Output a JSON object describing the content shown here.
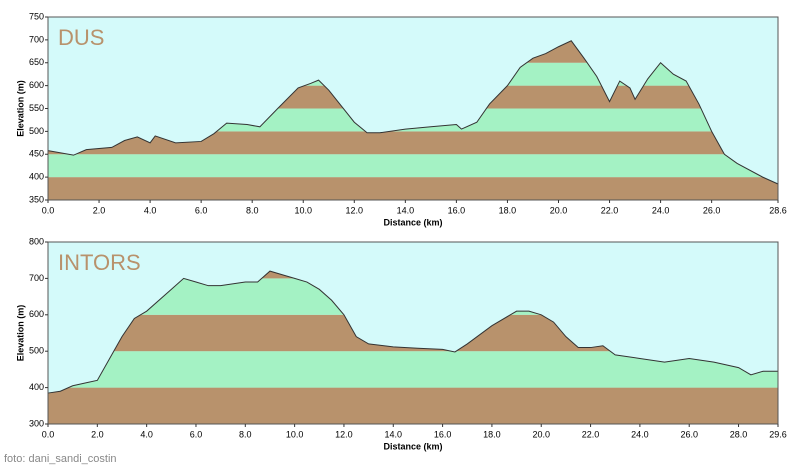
{
  "chart_data": [
    {
      "type": "area",
      "title": "DUS",
      "x_label": "Distance  (km)",
      "y_label": "Elevation (m)",
      "xlim": [
        0,
        28.6
      ],
      "ylim": [
        350,
        750
      ],
      "xticks": [
        {
          "value": 0,
          "label": "0.0"
        },
        {
          "value": 2,
          "label": "2.0"
        },
        {
          "value": 4,
          "label": "4.0"
        },
        {
          "value": 6,
          "label": "6.0"
        },
        {
          "value": 8,
          "label": "8.0"
        },
        {
          "value": 10,
          "label": "10.0"
        },
        {
          "value": 12,
          "label": "12.0"
        },
        {
          "value": 14,
          "label": "14.0"
        },
        {
          "value": 16,
          "label": "16.0"
        },
        {
          "value": 18,
          "label": "18.0"
        },
        {
          "value": 20,
          "label": "20.0"
        },
        {
          "value": 22,
          "label": "22.0"
        },
        {
          "value": 24,
          "label": "24.0"
        },
        {
          "value": 26,
          "label": "26.0"
        },
        28.6
      ],
      "yticks": [
        350,
        400,
        450,
        500,
        550,
        600,
        650,
        700,
        750
      ],
      "band_colors": [
        "#b8926c",
        "#a4f2c4"
      ],
      "line_color": "#333333",
      "x": [
        0,
        1,
        1.5,
        2.5,
        3,
        3.5,
        4,
        4.2,
        5,
        6,
        6.5,
        7,
        7.8,
        8.3,
        9,
        9.8,
        10.3,
        10.6,
        11,
        12,
        12.5,
        13,
        14,
        15,
        16,
        16.2,
        16.8,
        17.3,
        18,
        18.5,
        19,
        19.5,
        20,
        20.5,
        21,
        21.5,
        22,
        22.4,
        22.8,
        23,
        23.5,
        24,
        24.5,
        25,
        25.5,
        26,
        26.5,
        27,
        28,
        28.6
      ],
      "values": [
        458,
        448,
        460,
        465,
        480,
        488,
        475,
        490,
        475,
        478,
        495,
        518,
        515,
        510,
        550,
        595,
        605,
        612,
        590,
        520,
        497,
        497,
        505,
        510,
        515,
        505,
        520,
        560,
        600,
        640,
        660,
        670,
        685,
        698,
        660,
        620,
        565,
        610,
        595,
        570,
        615,
        650,
        625,
        610,
        560,
        500,
        450,
        430,
        400,
        385
      ]
    },
    {
      "type": "area",
      "title": "INTORS",
      "x_label": "Distance  (km)",
      "y_label": "Elevation (m)",
      "xlim": [
        0,
        29.6
      ],
      "ylim": [
        300,
        800
      ],
      "xticks": [
        {
          "value": 0,
          "label": "0.0"
        },
        {
          "value": 2,
          "label": "2.0"
        },
        {
          "value": 4,
          "label": "4.0"
        },
        {
          "value": 6,
          "label": "6.0"
        },
        {
          "value": 8,
          "label": "8.0"
        },
        {
          "value": 10,
          "label": "10.0"
        },
        {
          "value": 12,
          "label": "12.0"
        },
        {
          "value": 14,
          "label": "14.0"
        },
        {
          "value": 16,
          "label": "16.0"
        },
        {
          "value": 18,
          "label": "18.0"
        },
        {
          "value": 20,
          "label": "20.0"
        },
        {
          "value": 22,
          "label": "22.0"
        },
        {
          "value": 24,
          "label": "24.0"
        },
        {
          "value": 26,
          "label": "26.0"
        },
        {
          "value": 28,
          "label": "28.0"
        },
        29.6
      ],
      "yticks": [
        300,
        400,
        500,
        600,
        700,
        800
      ],
      "band_colors": [
        "#b8926c",
        "#a4f2c4"
      ],
      "line_color": "#333333",
      "x": [
        0,
        0.5,
        1,
        2,
        2.5,
        3,
        3.5,
        4,
        5,
        5.5,
        6,
        6.5,
        7,
        8,
        8.5,
        9,
        9.5,
        10,
        10.5,
        11,
        11.5,
        12,
        12.5,
        13,
        14,
        15,
        16,
        16.5,
        17,
        18,
        19,
        19.5,
        20,
        20.5,
        21,
        21.5,
        22,
        22.5,
        23,
        24,
        25,
        26,
        27,
        28,
        28.5,
        29,
        29.6
      ],
      "values": [
        385,
        390,
        405,
        420,
        480,
        540,
        590,
        610,
        670,
        700,
        690,
        680,
        680,
        690,
        690,
        720,
        710,
        700,
        690,
        670,
        640,
        600,
        540,
        520,
        512,
        508,
        505,
        498,
        520,
        570,
        610,
        610,
        600,
        580,
        540,
        510,
        510,
        515,
        490,
        480,
        470,
        480,
        470,
        455,
        435,
        445,
        445
      ]
    }
  ],
  "footer": "foto: dani_sandi_costin"
}
